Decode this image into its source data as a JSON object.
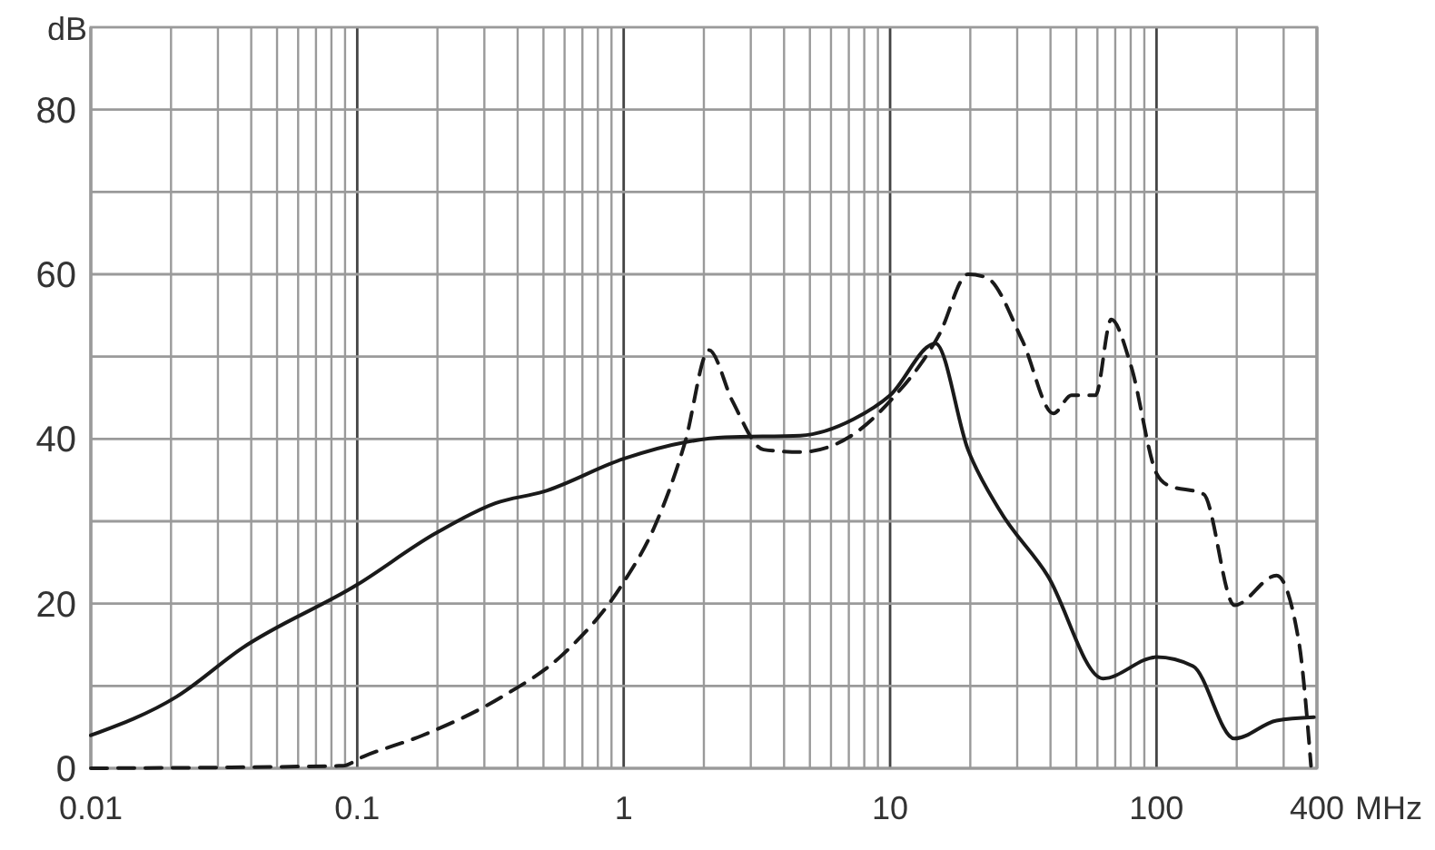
{
  "chart_data": {
    "type": "line",
    "xlabel": "MHz",
    "ylabel": "dB",
    "log": "x",
    "grid": true,
    "xlim": [
      0.01,
      400
    ],
    "ylim": [
      0,
      90
    ],
    "xticks": [
      0.01,
      {
        "value": 0.02,
        "label": null
      },
      {
        "value": 0.03,
        "label": null
      },
      {
        "value": 0.04,
        "label": null
      },
      {
        "value": 0.05,
        "label": null
      },
      {
        "value": 0.06,
        "label": null
      },
      {
        "value": 0.07,
        "label": null
      },
      {
        "value": 0.08,
        "label": null
      },
      {
        "value": 0.09,
        "label": null
      },
      0.1,
      {
        "value": 0.2,
        "label": null
      },
      {
        "value": 0.3,
        "label": null
      },
      {
        "value": 0.4,
        "label": null
      },
      {
        "value": 0.5,
        "label": null
      },
      {
        "value": 0.6,
        "label": null
      },
      {
        "value": 0.7,
        "label": null
      },
      {
        "value": 0.8,
        "label": null
      },
      {
        "value": 0.9,
        "label": null
      },
      1,
      {
        "value": 2,
        "label": null
      },
      {
        "value": 3,
        "label": null
      },
      {
        "value": 4,
        "label": null
      },
      {
        "value": 5,
        "label": null
      },
      {
        "value": 6,
        "label": null
      },
      {
        "value": 7,
        "label": null
      },
      {
        "value": 8,
        "label": null
      },
      {
        "value": 9,
        "label": null
      },
      10,
      {
        "value": 20,
        "label": null
      },
      {
        "value": 30,
        "label": null
      },
      {
        "value": 40,
        "label": null
      },
      {
        "value": 50,
        "label": null
      },
      {
        "value": 60,
        "label": null
      },
      {
        "value": 70,
        "label": null
      },
      {
        "value": 80,
        "label": null
      },
      {
        "value": 90,
        "label": null
      },
      100,
      {
        "value": 200,
        "label": null
      },
      {
        "value": 300,
        "label": null
      },
      400
    ],
    "yticks": [
      0,
      {
        "value": 10,
        "label": null
      },
      20,
      {
        "value": 30,
        "label": null
      },
      40,
      {
        "value": 50,
        "label": null
      },
      60,
      {
        "value": 70,
        "label": null
      },
      80
    ],
    "series": [
      {
        "color": "#1a1a1a",
        "line_style": "solid",
        "x": [
          0.01,
          0.021,
          0.037,
          0.1,
          0.196,
          0.33,
          0.5,
          1,
          1.7,
          2.4,
          4.6,
          7.3,
          10,
          14.8,
          19.6,
          25.7,
          39,
          63,
          100,
          137,
          196,
          282,
          390
        ],
        "values": [
          4,
          8.7,
          14.6,
          22.3,
          28.5,
          32.2,
          33.6,
          37.6,
          39.6,
          40.2,
          40.4,
          42.4,
          45.3,
          51.6,
          38.7,
          31.4,
          23.4,
          10.9,
          13.5,
          12.4,
          3.6,
          5.8,
          6.2
        ]
      },
      {
        "color": "#1a1a1a",
        "line_style": "dashed",
        "x": [
          0.01,
          0.088,
          0.105,
          0.176,
          0.35,
          0.59,
          1,
          1.3,
          1.7,
          2.09,
          2.56,
          3.35,
          4.6,
          7,
          10,
          15.3,
          19.6,
          23,
          31.4,
          41,
          48,
          59,
          67.6,
          80,
          100,
          110,
          150,
          196,
          282,
          342,
          380
        ],
        "values": [
          0,
          0.3,
          1.4,
          4,
          8.7,
          13.8,
          22.6,
          29.2,
          39.6,
          50.8,
          44.6,
          38.7,
          38.4,
          40.2,
          44.6,
          52.7,
          60,
          59.6,
          51.9,
          43.1,
          45.3,
          45.3,
          54.5,
          49,
          35.8,
          34.4,
          33.3,
          19.8,
          23.4,
          15.4,
          0.3
        ]
      }
    ]
  }
}
